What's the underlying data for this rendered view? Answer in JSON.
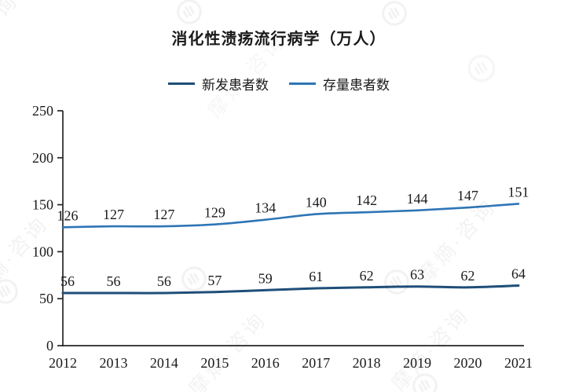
{
  "title": "消化性溃疡流行病学（万人）",
  "watermark": {
    "text": "摩熵·咨询",
    "logo_icon": "hand-in-circle-logo"
  },
  "legend": {
    "items": [
      {
        "label": "新发患者数",
        "color": "#1f4e79"
      },
      {
        "label": "存量患者数",
        "color": "#2e75b6"
      }
    ]
  },
  "chart_data": {
    "type": "line",
    "title": "消化性溃疡流行病学（万人）",
    "x": [
      2012,
      2013,
      2014,
      2015,
      2016,
      2017,
      2018,
      2019,
      2020,
      2021
    ],
    "series": [
      {
        "name": "新发患者数",
        "color": "#1f4e79",
        "values": [
          56,
          56,
          56,
          57,
          59,
          61,
          62,
          63,
          62,
          64
        ]
      },
      {
        "name": "存量患者数",
        "color": "#2e75b6",
        "values": [
          126,
          127,
          127,
          129,
          134,
          140,
          142,
          144,
          147,
          151
        ]
      }
    ],
    "xlabel": "",
    "ylabel": "",
    "ylim": [
      0,
      250
    ],
    "yticks": [
      0,
      50,
      100,
      150,
      200,
      250
    ],
    "grid": false,
    "legend_position": "top",
    "data_labels": true,
    "smoothed_lines": true
  }
}
